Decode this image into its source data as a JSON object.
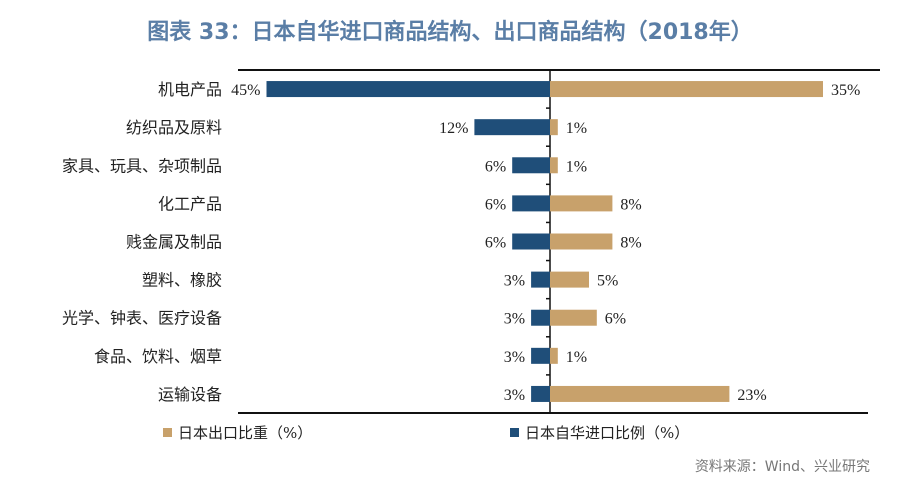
{
  "title": "图表 33：日本自华进口商品结构、出口商品结构（2018年）",
  "source": "资料来源：Wind、兴业研究",
  "chart_data": {
    "type": "bar",
    "orientation": "horizontal-diverging",
    "title": "图表 33：日本自华进口商品结构、出口商品结构（2018年）",
    "categories": [
      "机电产品",
      "纺织品及原料",
      "家具、玩具、杂项制品",
      "化工产品",
      "贱金属及制品",
      "塑料、橡胶",
      "光学、钟表、医疗设备",
      "食品、饮料、烟草",
      "运输设备"
    ],
    "series": [
      {
        "name": "日本自华进口比例（%）",
        "side": "left",
        "color": "#1f4e79",
        "values": [
          45,
          12,
          6,
          6,
          6,
          3,
          3,
          3,
          3
        ],
        "labels": [
          "45%",
          "12%",
          "6%",
          "6%",
          "6%",
          "3%",
          "3%",
          "3%",
          "3%"
        ]
      },
      {
        "name": "日本出口比重（%）",
        "side": "right",
        "color": "#c8a16b",
        "values": [
          35,
          1,
          1,
          8,
          8,
          5,
          6,
          1,
          23
        ],
        "labels": [
          "35%",
          "1%",
          "1%",
          "8%",
          "8%",
          "5%",
          "6%",
          "1%",
          "23%"
        ]
      }
    ],
    "legend": "bottom",
    "grid": false
  }
}
